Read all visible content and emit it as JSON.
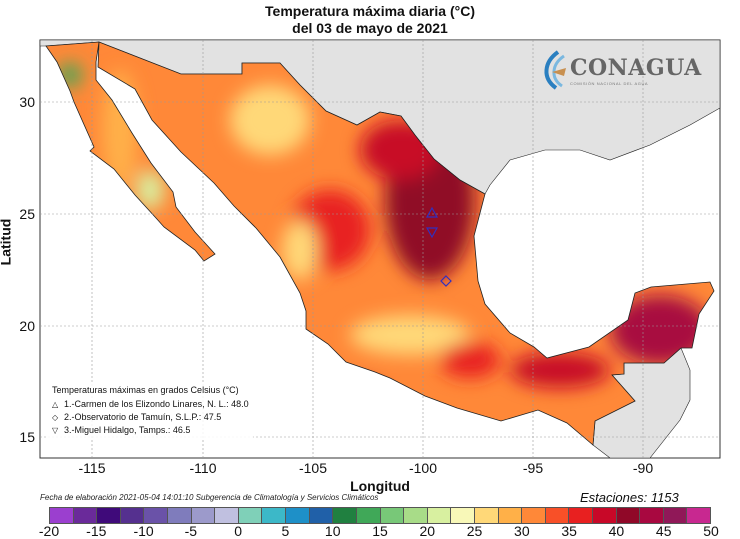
{
  "title": {
    "line1": "Temperatura máxima diaria (°C)",
    "line2": "del 03 de mayo de 2021"
  },
  "axes": {
    "xlabel": "Longitud",
    "ylabel": "Latitud",
    "xticks": [
      "-115",
      "-110",
      "-105",
      "-100",
      "-95",
      "-90"
    ],
    "yticks": [
      "30",
      "25",
      "20",
      "15"
    ]
  },
  "logo": {
    "name": "CONAGUA",
    "subtitle": "COMISIÓN NACIONAL DEL AGUA"
  },
  "legend": {
    "title": "Temperaturas máximas en grados Celsius (°C)",
    "items": [
      {
        "symbol": "△",
        "text": "1.-Carmen de los Elizondo Linares, N. L.: 48.0"
      },
      {
        "symbol": "◇",
        "text": "2.-Observatorio de Tamuín, S.L.P.: 47.5"
      },
      {
        "symbol": "▽",
        "text": "3.-Miguel Hidalgo, Tamps.: 46.5"
      }
    ]
  },
  "footer": "Fecha de elaboración 2021-05-04 14:01:10 Subgerencia de Climatología y Servicios Climáticos",
  "stations": "Estaciones:  1153",
  "colorbar": {
    "labels": [
      "-20",
      "-15",
      "-10",
      "-5",
      "0",
      "5",
      "10",
      "15",
      "20",
      "25",
      "30",
      "35",
      "40",
      "45",
      "50"
    ],
    "colors": [
      "#9b3fcf",
      "#6a2a9a",
      "#3f0a7a",
      "#55308f",
      "#6a52a8",
      "#7f7cbc",
      "#9c9acb",
      "#c0c0e0",
      "#7fd0b8",
      "#3cb8c8",
      "#1e90c8",
      "#2060a8",
      "#208040",
      "#40a858",
      "#78c878",
      "#a8dc88",
      "#d8f0a0",
      "#f8f8b8",
      "#ffd878",
      "#ffb048",
      "#ff8838",
      "#f85028",
      "#e82020",
      "#c80828",
      "#900828",
      "#a80840",
      "#901858",
      "#c82890"
    ]
  }
}
